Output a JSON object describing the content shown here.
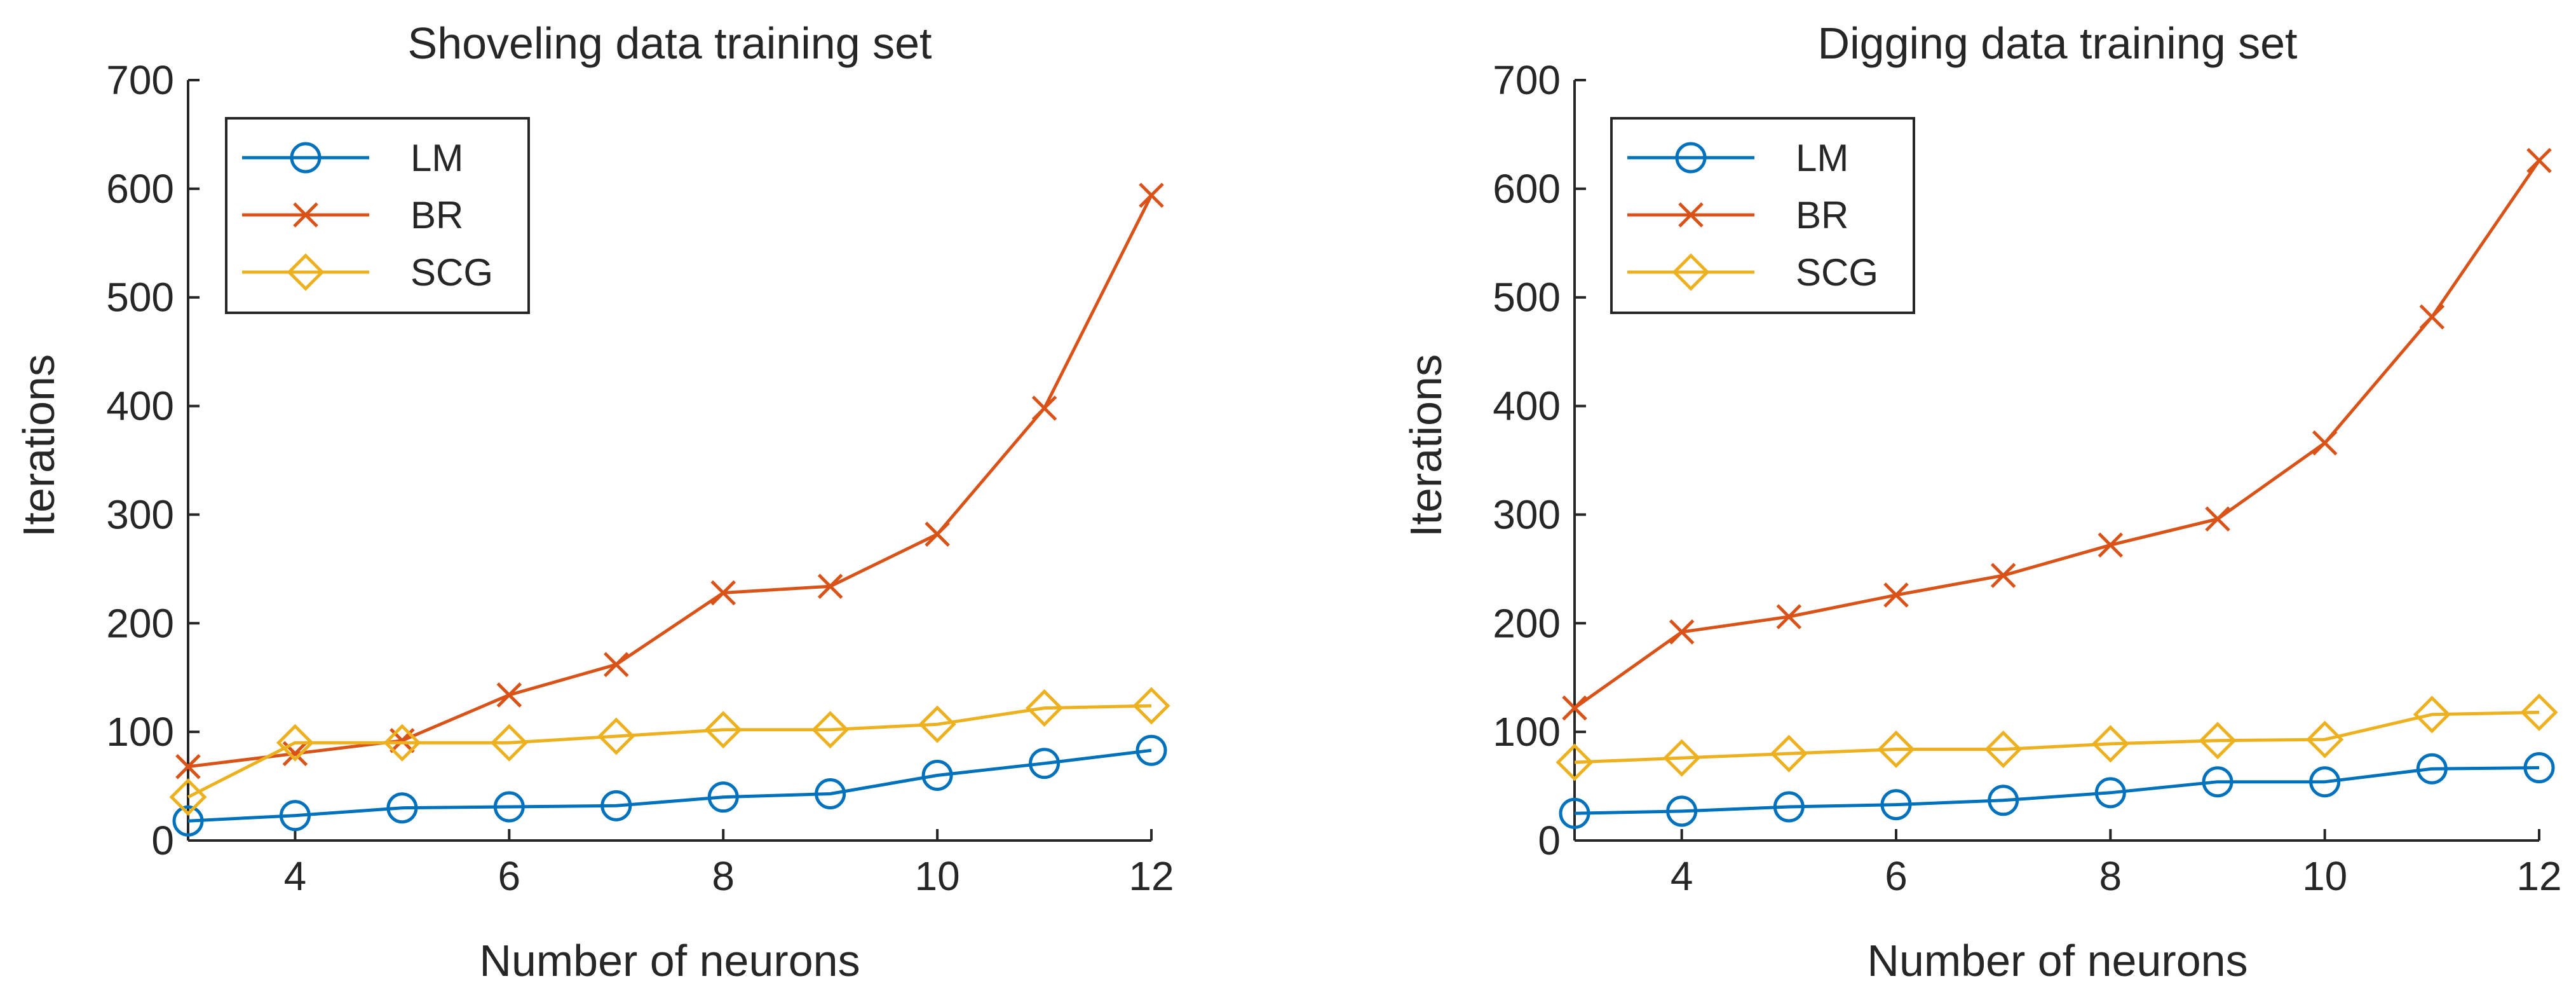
{
  "chart_data": [
    {
      "type": "line",
      "title": "Shoveling data training set",
      "xlabel": "Number of neurons",
      "ylabel": "Iterations",
      "xlim": [
        3,
        12
      ],
      "ylim": [
        0,
        700
      ],
      "xticks": [
        4,
        6,
        8,
        10,
        12
      ],
      "yticks": [
        0,
        100,
        200,
        300,
        400,
        500,
        600,
        700
      ],
      "grid": false,
      "legend_position": "top-left",
      "x": [
        3,
        4,
        5,
        6,
        7,
        8,
        9,
        10,
        11,
        12
      ],
      "series": [
        {
          "name": "LM",
          "marker": "circle",
          "color": "#0072BD",
          "values": [
            18,
            23,
            30,
            31,
            32,
            40,
            43,
            60,
            71,
            83
          ]
        },
        {
          "name": "BR",
          "marker": "x",
          "color": "#D95319",
          "values": [
            68,
            80,
            92,
            134,
            162,
            228,
            234,
            282,
            398,
            594
          ]
        },
        {
          "name": "SCG",
          "marker": "diamond",
          "color": "#EDB120",
          "values": [
            40,
            90,
            90,
            90,
            96,
            102,
            102,
            107,
            122,
            124
          ]
        }
      ]
    },
    {
      "type": "line",
      "title": "Digging data training set",
      "xlabel": "Number of neurons",
      "ylabel": "Iterations",
      "xlim": [
        3,
        12
      ],
      "ylim": [
        0,
        700
      ],
      "xticks": [
        4,
        6,
        8,
        10,
        12
      ],
      "yticks": [
        0,
        100,
        200,
        300,
        400,
        500,
        600,
        700
      ],
      "grid": false,
      "legend_position": "top-left",
      "x": [
        3,
        4,
        5,
        6,
        7,
        8,
        9,
        10,
        11,
        12
      ],
      "series": [
        {
          "name": "LM",
          "marker": "circle",
          "color": "#0072BD",
          "values": [
            25,
            27,
            31,
            33,
            37,
            44,
            54,
            54,
            66,
            67
          ]
        },
        {
          "name": "BR",
          "marker": "x",
          "color": "#D95319",
          "values": [
            122,
            192,
            206,
            226,
            244,
            272,
            296,
            366,
            482,
            626
          ]
        },
        {
          "name": "SCG",
          "marker": "diamond",
          "color": "#EDB120",
          "values": [
            72,
            76,
            80,
            84,
            84,
            89,
            92,
            93,
            116,
            118
          ]
        }
      ]
    }
  ]
}
